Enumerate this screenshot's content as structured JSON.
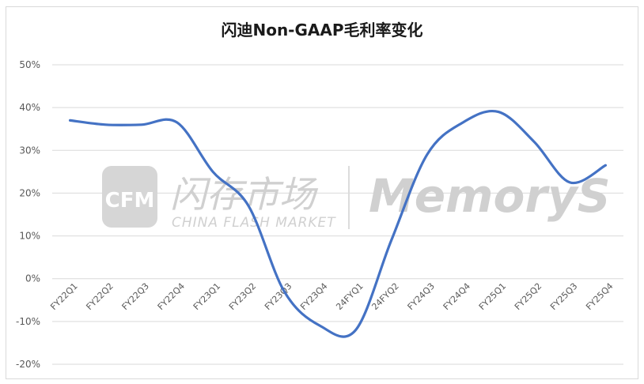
{
  "chart_data": {
    "type": "line",
    "title": "闪迪Non-GAAP毛利率变化",
    "xlabel": "",
    "ylabel": "",
    "categories": [
      "FY22Q1",
      "FY22Q2",
      "FY22Q3",
      "FY22Q4",
      "FY23Q1",
      "FY23Q2",
      "FY23Q3",
      "FY23Q4",
      "24FYQ1",
      "24FYQ2",
      "FY24Q3",
      "FY24Q4",
      "FY25Q1",
      "FY25Q2",
      "FY25Q3",
      "FY25Q4"
    ],
    "series": [
      {
        "values": [
          37,
          36,
          36,
          36.5,
          25,
          17,
          -3,
          -11,
          -12,
          9,
          29,
          36.5,
          39,
          32,
          22.5,
          26.5
        ]
      }
    ],
    "ylim": [
      -20,
      50
    ],
    "yticks": [
      -20,
      -10,
      0,
      10,
      20,
      30,
      40,
      50
    ],
    "ytick_labels": [
      "-20%",
      "-10%",
      "0%",
      "10%",
      "20%",
      "30%",
      "40%",
      "50%"
    ],
    "grid": true,
    "line_color": "#4472c4",
    "grid_color": "#d9d9d9",
    "smooth": true
  },
  "watermark": {
    "logo_text": "CFM",
    "cn_text": "闪存市场",
    "en_text": "CHINA FLASH MARKET",
    "brand_text": "MemoryS"
  }
}
